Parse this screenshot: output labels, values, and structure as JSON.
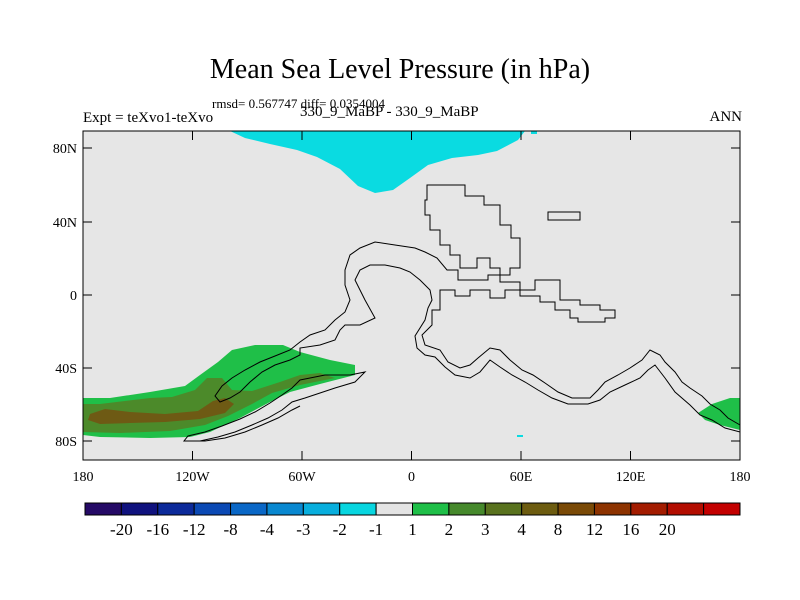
{
  "figure": {
    "title": "Mean Sea Level Pressure (in hPa)",
    "stats_line": "rmsd= 0.567747 diff= 0.0354004",
    "left_label": "Expt = teXvo1-teXvo",
    "center_label": "330_9_MaBP - 330_9_MaBP",
    "right_label": "ANN"
  },
  "axes": {
    "lat_ticks": [
      "80N",
      "40N",
      "0",
      "40S",
      "80S"
    ],
    "lon_ticks": [
      "180",
      "120W",
      "60W",
      "0",
      "60E",
      "120E",
      "180"
    ]
  },
  "colorbar": {
    "colors": [
      "#250a66",
      "#10127e",
      "#0c2a9a",
      "#0b49b4",
      "#0a67c6",
      "#0988d0",
      "#08aedd",
      "#08d6e0",
      "#e4e4e4",
      "#1fbf48",
      "#46892c",
      "#59721e",
      "#6d5c10",
      "#7a4a06",
      "#8d3300",
      "#a31c00",
      "#b30d00",
      "#c30000"
    ],
    "labels": [
      "-20",
      "-16",
      "-12",
      "-8",
      "-4",
      "-3",
      "-2",
      "-1",
      "1",
      "2",
      "3",
      "4",
      "8",
      "12",
      "16",
      "20"
    ]
  },
  "map_colors": {
    "background": "#e6e6e6",
    "cyan": "#0adbe1",
    "green": "#1fbf48",
    "dark_green": "#4c8a2a",
    "brown": "#6e5a14"
  }
}
